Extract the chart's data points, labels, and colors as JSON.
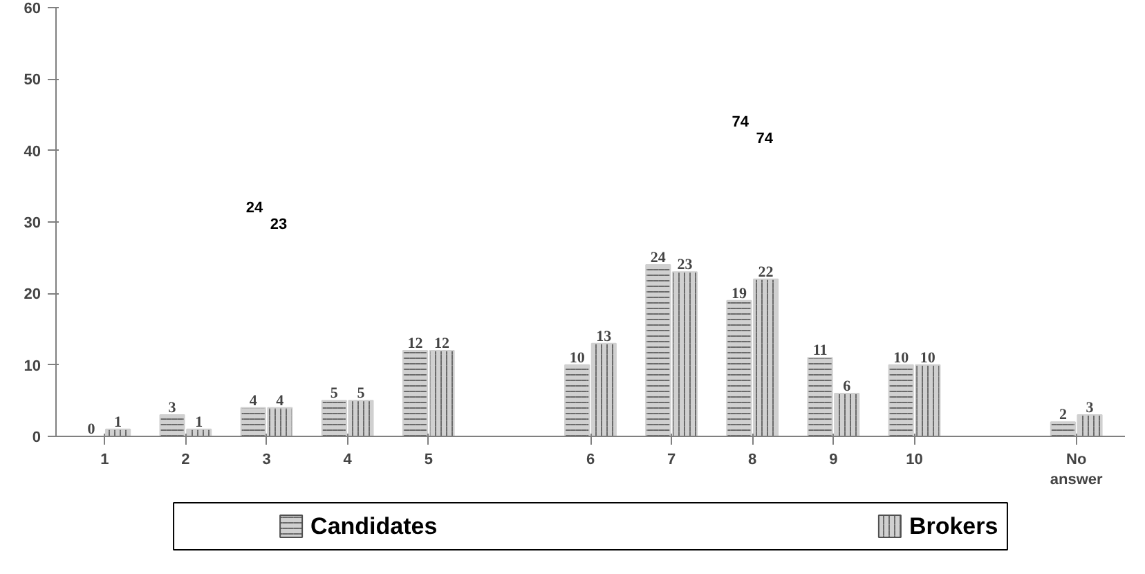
{
  "chart_data": {
    "type": "bar",
    "categories": [
      "1",
      "2",
      "3",
      "4",
      "5",
      null,
      "6",
      "7",
      "8",
      "9",
      "10",
      null,
      "No answer"
    ],
    "series": [
      {
        "name": "Candidates",
        "color": "#d0d0d0",
        "values": [
          0,
          3,
          4,
          5,
          12,
          null,
          10,
          24,
          19,
          11,
          10,
          null,
          2
        ]
      },
      {
        "name": "Brokers",
        "color": "#d0d0d0",
        "values": [
          1,
          1,
          4,
          5,
          12,
          null,
          13,
          23,
          22,
          6,
          10,
          null,
          3
        ]
      }
    ],
    "ylim": [
      0,
      60
    ],
    "yticks": [
      0,
      10,
      20,
      30,
      40,
      50,
      60
    ],
    "grid": false,
    "legend": "bottom",
    "data_labels": true,
    "annotations": [
      "24",
      "23",
      "74",
      "74"
    ]
  }
}
